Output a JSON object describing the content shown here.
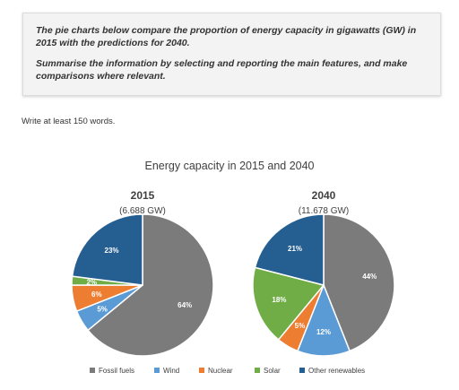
{
  "task": {
    "paragraph1": "The pie charts below compare the proportion of energy capacity in gigawatts (GW) in 2015 with the predictions for 2040.",
    "paragraph2": "Summarise the information by selecting and reporting the main features, and make comparisons where relevant."
  },
  "instruction": "Write at least 150 words.",
  "chart_data": {
    "type": "pie",
    "title": "Energy capacity in 2015 and 2040",
    "legend_position": "bottom",
    "categories": [
      "Fossil fuels",
      "Wind",
      "Nuclear",
      "Solar",
      "Other renewables"
    ],
    "colors": [
      "#7b7b7b",
      "#5b9bd5",
      "#ed7d31",
      "#70ad47",
      "#255e91"
    ],
    "pies": [
      {
        "title": "2015",
        "subtitle": "(6.688 GW)",
        "values": [
          64,
          5,
          6,
          2,
          23
        ],
        "labels": [
          "64%",
          "5%",
          "6%",
          "2%",
          "23%"
        ]
      },
      {
        "title": "2040",
        "subtitle": "(11.678 GW)",
        "values": [
          44,
          12,
          5,
          18,
          21
        ],
        "labels": [
          "44%",
          "12%",
          "5%",
          "18%",
          "21%"
        ]
      }
    ]
  }
}
